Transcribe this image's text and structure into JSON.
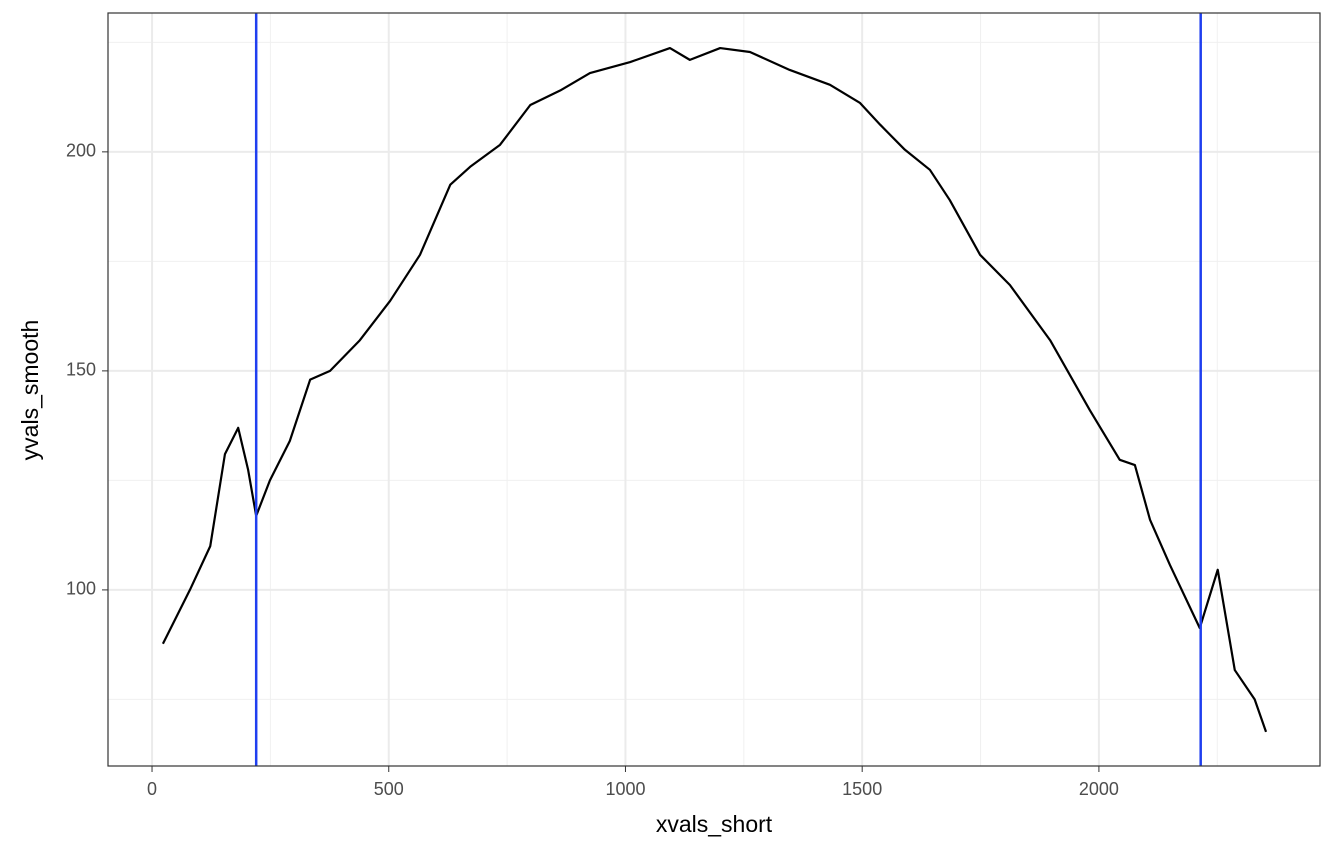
{
  "chart_data": {
    "type": "line",
    "x_label": "xvals_short",
    "y_label": "yvals_smooth",
    "x": [
      23,
      80,
      123,
      154,
      182,
      203,
      220,
      249,
      291,
      334,
      376,
      439,
      503,
      566,
      630,
      672,
      735,
      799,
      862,
      925,
      1010,
      1094,
      1136,
      1200,
      1263,
      1347,
      1432,
      1495,
      1538,
      1590,
      1643,
      1685,
      1749,
      1812,
      1897,
      1981,
      2044,
      2076,
      2108,
      2150,
      2213,
      2251,
      2287,
      2329,
      2353
    ],
    "series": [
      {
        "name": "yvals_smooth",
        "color": "#000000",
        "values": [
          87.7,
          100,
          110,
          131,
          137,
          127.4,
          116.9,
          125,
          134,
          148,
          150,
          157,
          166,
          176.5,
          192.5,
          196.6,
          201.6,
          210.7,
          214,
          218,
          220.5,
          223.7,
          221,
          223.7,
          222.8,
          218.7,
          215.3,
          211.2,
          206.2,
          200.5,
          195.9,
          189,
          176.5,
          169.6,
          157,
          141,
          129.7,
          128.5,
          116,
          105.7,
          91.3,
          104.6,
          81.7,
          75,
          67.6
        ]
      }
    ],
    "vlines": [
      220,
      2215
    ],
    "vline_color": "#1f3ff0",
    "xlim": [
      -93,
      2467
    ],
    "ylim": [
      59.8,
      231.7
    ],
    "xticks": [
      0,
      500,
      1000,
      1500,
      2000
    ],
    "yticks": [
      100,
      150,
      200
    ],
    "x_minor_grid": [
      250,
      750,
      1250,
      1750,
      2250
    ],
    "y_minor_grid": [
      75,
      125,
      175,
      225
    ],
    "grid": true
  }
}
